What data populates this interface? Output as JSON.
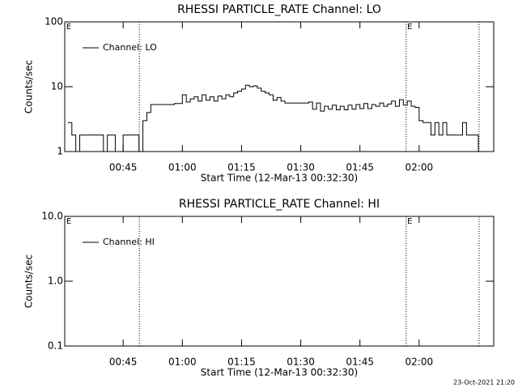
{
  "chart_data": [
    {
      "type": "line",
      "title": "RHESSI PARTICLE_RATE Channel: LO",
      "xlabel": "Start Time (12-Mar-13 00:32:30)",
      "ylabel": "Counts/sec",
      "log_y": true,
      "ylim": [
        1,
        100
      ],
      "yticks": [
        1,
        10,
        100
      ],
      "xlim": [
        30.2,
        138.9
      ],
      "xticks": [
        {
          "value": 45,
          "label": "00:45"
        },
        {
          "value": 60,
          "label": "01:00"
        },
        {
          "value": 75,
          "label": "01:15"
        },
        {
          "value": 90,
          "label": "01:30"
        },
        {
          "value": 105,
          "label": "01:45"
        },
        {
          "value": 120,
          "label": "02:00"
        }
      ],
      "vlines": [
        49.1,
        116.7,
        135.2
      ],
      "events": [
        {
          "label": "E",
          "x": 31
        },
        {
          "label": "E",
          "x": 117.4
        }
      ],
      "legend": "upper left",
      "series": [
        {
          "name": "Channel: LO",
          "color": "#000000",
          "x": [
            31,
            32,
            33,
            34,
            35,
            36,
            37,
            38,
            39,
            40,
            41,
            42,
            43,
            44,
            45,
            46,
            47,
            48,
            49,
            50,
            51,
            52,
            53,
            54,
            55,
            56,
            57,
            58,
            59,
            60,
            61,
            62,
            63,
            64,
            65,
            66,
            67,
            68,
            69,
            70,
            71,
            72,
            73,
            74,
            75,
            76,
            77,
            78,
            79,
            80,
            81,
            82,
            83,
            84,
            85,
            86,
            87,
            88,
            89,
            90,
            91,
            92,
            93,
            94,
            95,
            96,
            97,
            98,
            99,
            100,
            101,
            102,
            103,
            104,
            105,
            106,
            107,
            108,
            109,
            110,
            111,
            112,
            113,
            114,
            115,
            116,
            117,
            118,
            119,
            120,
            121,
            122,
            123,
            124,
            125,
            126,
            127,
            128,
            129,
            130,
            131,
            132,
            133,
            134,
            135
          ],
          "values": [
            2.8,
            1.8,
            1,
            1.8,
            1.8,
            1.8,
            1.8,
            1.8,
            1.8,
            1,
            1.8,
            1.8,
            1,
            1,
            1.8,
            1.8,
            1.8,
            1.8,
            1,
            3,
            4,
            5.3,
            5.3,
            5.3,
            5.3,
            5.3,
            5.3,
            5.5,
            5.5,
            7.5,
            5.8,
            6.5,
            7,
            6,
            7.5,
            6.2,
            7,
            6,
            7.2,
            6.5,
            7.5,
            7,
            8,
            8.5,
            9.2,
            10.5,
            10,
            10.3,
            9.5,
            8.5,
            8,
            7.5,
            6.2,
            6.8,
            6,
            5.6,
            5.6,
            5.6,
            5.6,
            5.6,
            5.6,
            5.8,
            4.5,
            5.6,
            4.2,
            5,
            4.5,
            5.2,
            4.4,
            5,
            4.4,
            5.2,
            4.5,
            5.3,
            4.6,
            5.5,
            4.6,
            5.3,
            5,
            5.6,
            5,
            5.4,
            6,
            5,
            6.3,
            5.2,
            6,
            5,
            4.8,
            3,
            2.8,
            2.8,
            1.8,
            2.8,
            1.8,
            2.8,
            1.8,
            1.8,
            1.8,
            1.8,
            2.8,
            1.8,
            1.8,
            1.8,
            1
          ]
        }
      ]
    },
    {
      "type": "line",
      "title": "RHESSI PARTICLE_RATE Channel: HI",
      "xlabel": "Start Time (12-Mar-13 00:32:30)",
      "ylabel": "Counts/sec",
      "log_y": true,
      "ylim": [
        0.1,
        10
      ],
      "yticks": [
        0.1,
        {
          "value": 1,
          "label": "1.0"
        },
        {
          "value": 10,
          "label": "10.0"
        }
      ],
      "xlim": [
        30.2,
        138.9
      ],
      "xticks": [
        {
          "value": 45,
          "label": "00:45"
        },
        {
          "value": 60,
          "label": "01:00"
        },
        {
          "value": 75,
          "label": "01:15"
        },
        {
          "value": 90,
          "label": "01:30"
        },
        {
          "value": 105,
          "label": "01:45"
        },
        {
          "value": 120,
          "label": "02:00"
        }
      ],
      "vlines": [
        49.1,
        116.7,
        135.2
      ],
      "events": [
        {
          "label": "E",
          "x": 31
        },
        {
          "label": "E",
          "x": 117.4
        }
      ],
      "legend": "upper left",
      "series": [
        {
          "name": "Channel: HI",
          "color": "#000000",
          "x": [],
          "values": []
        }
      ]
    }
  ],
  "footer": "23-Oct-2021 21:20"
}
